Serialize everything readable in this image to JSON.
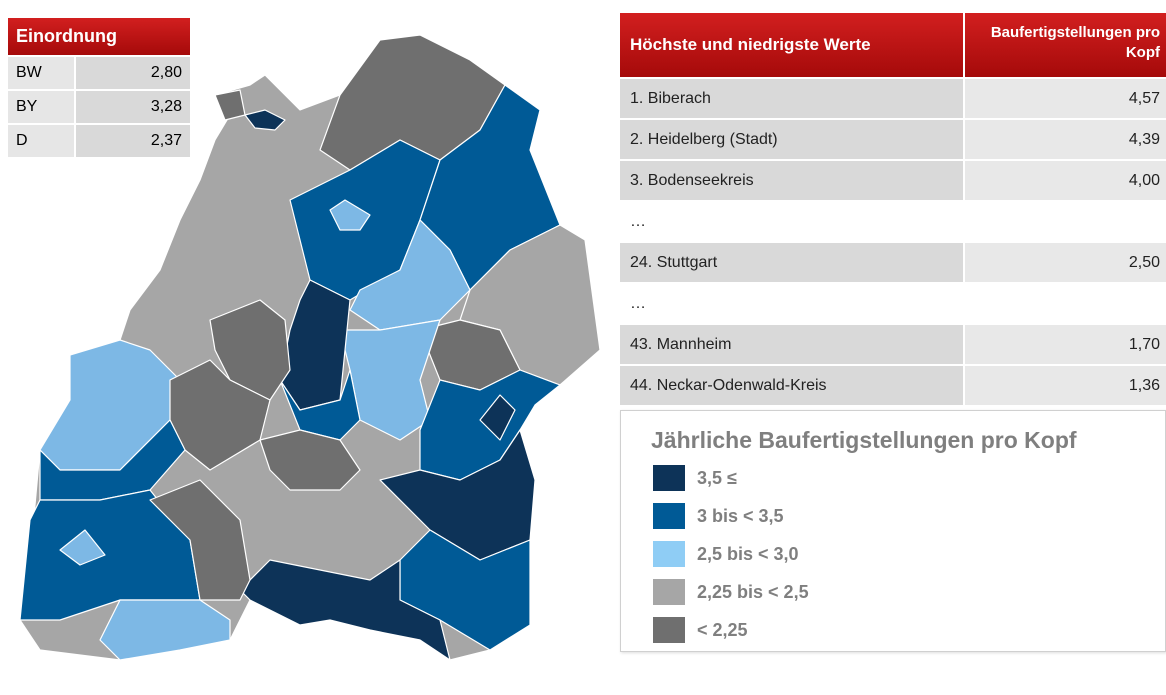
{
  "summary": {
    "title": "Einordnung",
    "rows": [
      [
        "BW",
        "2,80"
      ],
      [
        "BY",
        "3,28"
      ],
      [
        "D",
        "2,37"
      ]
    ]
  },
  "ranking": {
    "headers": [
      "Höchste und niedrigste Werte",
      "Baufertigstellungen pro Kopf"
    ],
    "rows": [
      [
        "1. Biberach",
        "4,57"
      ],
      [
        "2. Heidelberg (Stadt)",
        "4,39"
      ],
      [
        "3. Bodenseekreis",
        "4,00"
      ],
      [
        "…"
      ],
      [
        "24. Stuttgart",
        "2,50"
      ],
      [
        "…"
      ],
      [
        "43. Mannheim",
        "1,70"
      ],
      [
        "44. Neckar-Odenwald-Kreis",
        "1,36"
      ]
    ]
  },
  "legend": {
    "title": "Jährliche Baufertigstellungen pro Kopf",
    "items": [
      {
        "label": "3,5 ≤",
        "color": "#0d3358"
      },
      {
        "label": "3 bis < 3,5",
        "color": "#005a96"
      },
      {
        "label": "2,5 bis < 3,0",
        "color": "#8fcdf5"
      },
      {
        "label": "2,25 bis < 2,5",
        "color": "#a6a6a6"
      },
      {
        "label": "< 2,25",
        "color": "#6f6f6f"
      }
    ]
  }
}
